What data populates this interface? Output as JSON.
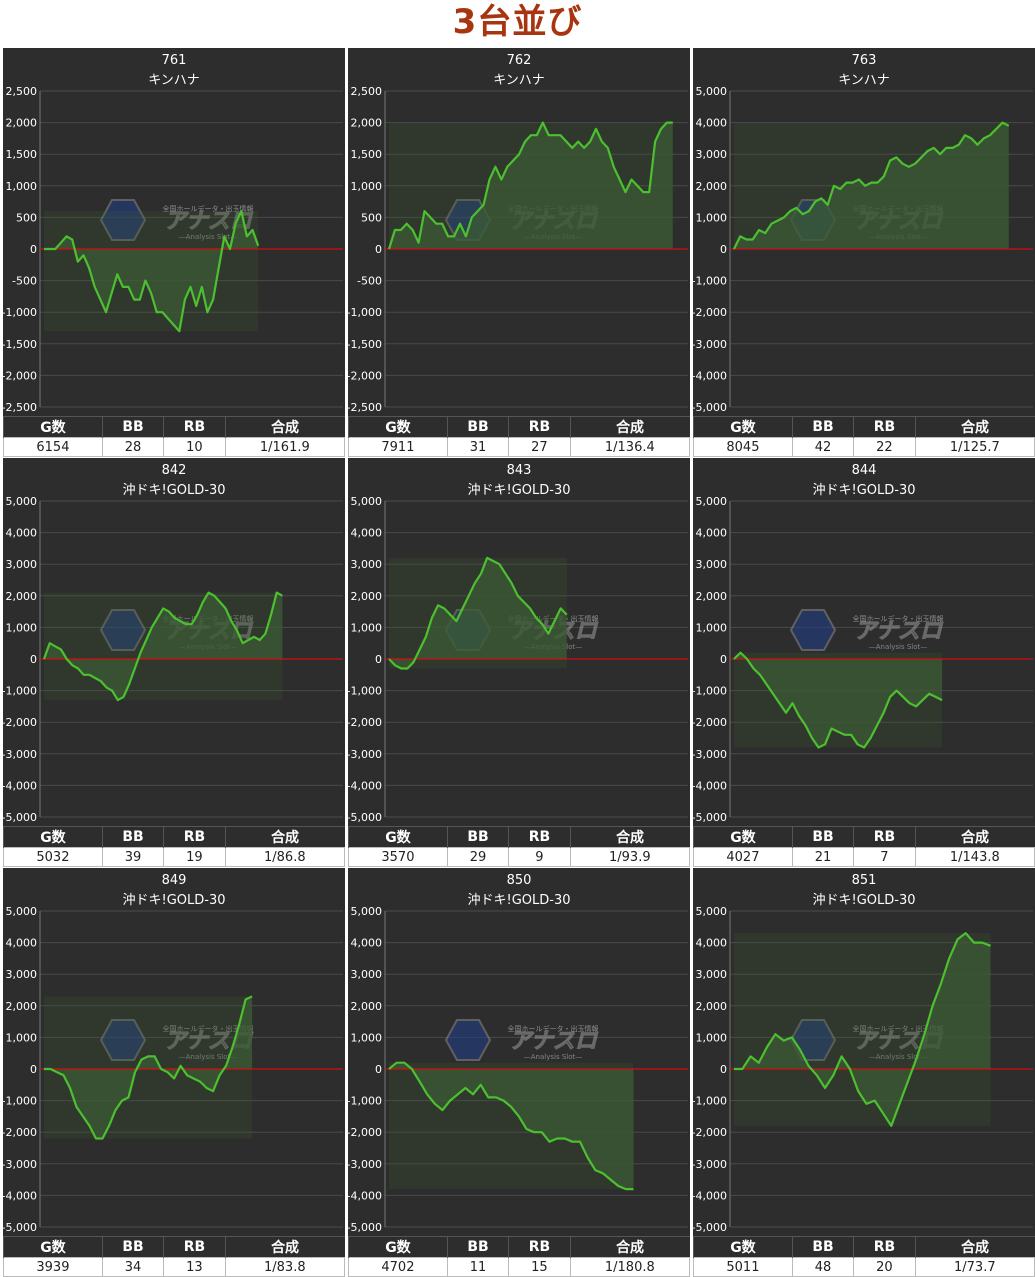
{
  "title": "3台並び",
  "watermark": {
    "brand": "アナスロ",
    "tagline": "全国ホールデータ・出玉情報",
    "subtitle": "—Analysis Slot—"
  },
  "table_headers": [
    "G数",
    "BB",
    "RB",
    "合成"
  ],
  "colors": {
    "title": "#a8350f",
    "panel_bg": "#2d2d2d",
    "line": "#4cc02e",
    "fill": "#3a5a34",
    "zero_line": "#d01010",
    "grid": "#4a4a4a"
  },
  "chart_data": [
    {
      "type": "area",
      "number": "761",
      "model": "キンハナ",
      "ylim": [
        -2500,
        2500
      ],
      "yticks": [
        "2,500",
        "2,000",
        "1,500",
        "1,000",
        "500",
        "0",
        "-500",
        "-1,000",
        "-1,500",
        "-2,000",
        "-2,500"
      ],
      "x_end": 0.72,
      "values": [
        0,
        0,
        0,
        100,
        200,
        150,
        -200,
        -100,
        -300,
        -600,
        -800,
        -1000,
        -700,
        -400,
        -600,
        -600,
        -800,
        -800,
        -500,
        -700,
        -1000,
        -1000,
        -1100,
        -1200,
        -1300,
        -800,
        -600,
        -900,
        -600,
        -1000,
        -800,
        -300,
        200,
        0,
        400,
        600,
        200,
        300,
        50
      ],
      "stats": {
        "games": "6154",
        "bb": "28",
        "rb": "10",
        "combined": "1/161.9"
      }
    },
    {
      "type": "area",
      "number": "762",
      "model": "キンハナ",
      "ylim": [
        -2500,
        2500
      ],
      "yticks": [
        "2,500",
        "2,000",
        "1,500",
        "1,000",
        "500",
        "0",
        "-500",
        "-1,000",
        "-1,500",
        "-2,000",
        "-2,500"
      ],
      "x_end": 0.95,
      "values": [
        0,
        300,
        300,
        400,
        300,
        100,
        600,
        500,
        400,
        400,
        200,
        200,
        400,
        200,
        500,
        600,
        700,
        1100,
        1300,
        1100,
        1300,
        1400,
        1500,
        1700,
        1800,
        1800,
        2000,
        1800,
        1800,
        1800,
        1700,
        1600,
        1700,
        1600,
        1700,
        1900,
        1700,
        1600,
        1300,
        1100,
        900,
        1100,
        1000,
        900,
        900,
        1700,
        1900,
        2000,
        2000
      ],
      "stats": {
        "games": "7911",
        "bb": "31",
        "rb": "27",
        "combined": "1/136.4"
      }
    },
    {
      "type": "area",
      "number": "763",
      "model": "キンハナ",
      "ylim": [
        -5000,
        5000
      ],
      "yticks": [
        "5,000",
        "4,000",
        "3,000",
        "2,000",
        "1,000",
        "0",
        "-1,000",
        "-2,000",
        "-3,000",
        "-4,000",
        "-5,000"
      ],
      "x_end": 0.92,
      "values": [
        0,
        400,
        300,
        300,
        600,
        500,
        800,
        900,
        1000,
        1200,
        1300,
        1100,
        1200,
        1500,
        1600,
        1400,
        2000,
        1900,
        2100,
        2100,
        2200,
        2000,
        2100,
        2100,
        2300,
        2800,
        2900,
        2700,
        2600,
        2700,
        2900,
        3100,
        3200,
        3000,
        3200,
        3200,
        3300,
        3600,
        3500,
        3300,
        3500,
        3600,
        3800,
        4000,
        3900
      ],
      "stats": {
        "games": "8045",
        "bb": "42",
        "rb": "22",
        "combined": "1/125.7"
      }
    },
    {
      "type": "area",
      "number": "842",
      "model": "沖ドキ!GOLD-30",
      "ylim": [
        -5000,
        5000
      ],
      "yticks": [
        "5,000",
        "4,000",
        "3,000",
        "2,000",
        "1,000",
        "0",
        "-1,000",
        "-2,000",
        "-3,000",
        "-4,000",
        "-5,000"
      ],
      "x_end": 0.8,
      "values": [
        0,
        500,
        400,
        300,
        0,
        -200,
        -300,
        -500,
        -500,
        -600,
        -700,
        -900,
        -1000,
        -1300,
        -1200,
        -800,
        -300,
        200,
        600,
        1000,
        1300,
        1600,
        1500,
        1300,
        1200,
        1100,
        1100,
        1400,
        1800,
        2100,
        2000,
        1800,
        1600,
        1200,
        900,
        500,
        600,
        700,
        600,
        800,
        1400,
        2100,
        2000
      ],
      "stats": {
        "games": "5032",
        "bb": "39",
        "rb": "19",
        "combined": "1/86.8"
      }
    },
    {
      "type": "area",
      "number": "843",
      "model": "沖ドキ!GOLD-30",
      "ylim": [
        -5000,
        5000
      ],
      "yticks": [
        "5,000",
        "4,000",
        "3,000",
        "2,000",
        "1,000",
        "0",
        "-1,000",
        "-2,000",
        "-3,000",
        "-4,000",
        "-5,000"
      ],
      "x_end": 0.6,
      "values": [
        0,
        -200,
        -300,
        -300,
        -100,
        300,
        700,
        1300,
        1700,
        1600,
        1400,
        1200,
        1600,
        2000,
        2400,
        2700,
        3200,
        3100,
        3000,
        2700,
        2400,
        2000,
        1800,
        1600,
        1300,
        1100,
        800,
        1200,
        1600,
        1400
      ],
      "stats": {
        "games": "3570",
        "bb": "29",
        "rb": "9",
        "combined": "1/93.9"
      }
    },
    {
      "type": "area",
      "number": "844",
      "model": "沖ドキ!GOLD-30",
      "ylim": [
        -5000,
        5000
      ],
      "yticks": [
        "5,000",
        "4,000",
        "3,000",
        "2,000",
        "1,000",
        "0",
        "-1,000",
        "-2,000",
        "-3,000",
        "-4,000",
        "-5,000"
      ],
      "x_end": 0.7,
      "values": [
        0,
        200,
        0,
        -300,
        -500,
        -800,
        -1100,
        -1400,
        -1700,
        -1400,
        -1800,
        -2100,
        -2500,
        -2800,
        -2700,
        -2200,
        -2300,
        -2400,
        -2400,
        -2700,
        -2800,
        -2500,
        -2100,
        -1700,
        -1200,
        -1000,
        -1200,
        -1400,
        -1500,
        -1300,
        -1100,
        -1200,
        -1300
      ],
      "stats": {
        "games": "4027",
        "bb": "21",
        "rb": "7",
        "combined": "1/143.8"
      }
    },
    {
      "type": "area",
      "number": "849",
      "model": "沖ドキ!GOLD-30",
      "ylim": [
        -5000,
        5000
      ],
      "yticks": [
        "5,000",
        "4,000",
        "3,000",
        "2,000",
        "1,000",
        "0",
        "-1,000",
        "-2,000",
        "-3,000",
        "-4,000",
        "-5,000"
      ],
      "x_end": 0.7,
      "values": [
        0,
        0,
        -100,
        -200,
        -600,
        -1200,
        -1500,
        -1800,
        -2200,
        -2200,
        -1800,
        -1300,
        -1000,
        -900,
        -100,
        300,
        400,
        400,
        0,
        -100,
        -300,
        100,
        -200,
        -300,
        -400,
        -600,
        -700,
        -200,
        100,
        700,
        1400,
        2200,
        2300
      ],
      "stats": {
        "games": "3939",
        "bb": "34",
        "rb": "13",
        "combined": "1/83.8"
      }
    },
    {
      "type": "area",
      "number": "850",
      "model": "沖ドキ!GOLD-30",
      "ylim": [
        -5000,
        5000
      ],
      "yticks": [
        "5,000",
        "4,000",
        "3,000",
        "2,000",
        "1,000",
        "0",
        "-1,000",
        "-2,000",
        "-3,000",
        "-4,000",
        "-5,000"
      ],
      "x_end": 0.82,
      "values": [
        0,
        200,
        200,
        0,
        -400,
        -800,
        -1100,
        -1300,
        -1000,
        -800,
        -600,
        -800,
        -500,
        -900,
        -900,
        -1000,
        -1200,
        -1500,
        -1900,
        -2000,
        -2000,
        -2300,
        -2200,
        -2200,
        -2300,
        -2300,
        -2800,
        -3200,
        -3300,
        -3500,
        -3700,
        -3800,
        -3800
      ],
      "stats": {
        "games": "4702",
        "bb": "11",
        "rb": "15",
        "combined": "1/180.8"
      }
    },
    {
      "type": "area",
      "number": "851",
      "model": "沖ドキ!GOLD-30",
      "ylim": [
        -5000,
        5000
      ],
      "yticks": [
        "5,000",
        "4,000",
        "3,000",
        "2,000",
        "1,000",
        "0",
        "-1,000",
        "-2,000",
        "-3,000",
        "-4,000",
        "-5,000"
      ],
      "x_end": 0.86,
      "values": [
        0,
        0,
        400,
        200,
        700,
        1100,
        900,
        1000,
        600,
        100,
        -200,
        -600,
        -200,
        400,
        0,
        -700,
        -1100,
        -1000,
        -1400,
        -1800,
        -1100,
        -400,
        300,
        1100,
        2000,
        2700,
        3500,
        4100,
        4300,
        4000,
        4000,
        3900
      ],
      "stats": {
        "games": "5011",
        "bb": "48",
        "rb": "20",
        "combined": "1/73.7"
      }
    }
  ]
}
